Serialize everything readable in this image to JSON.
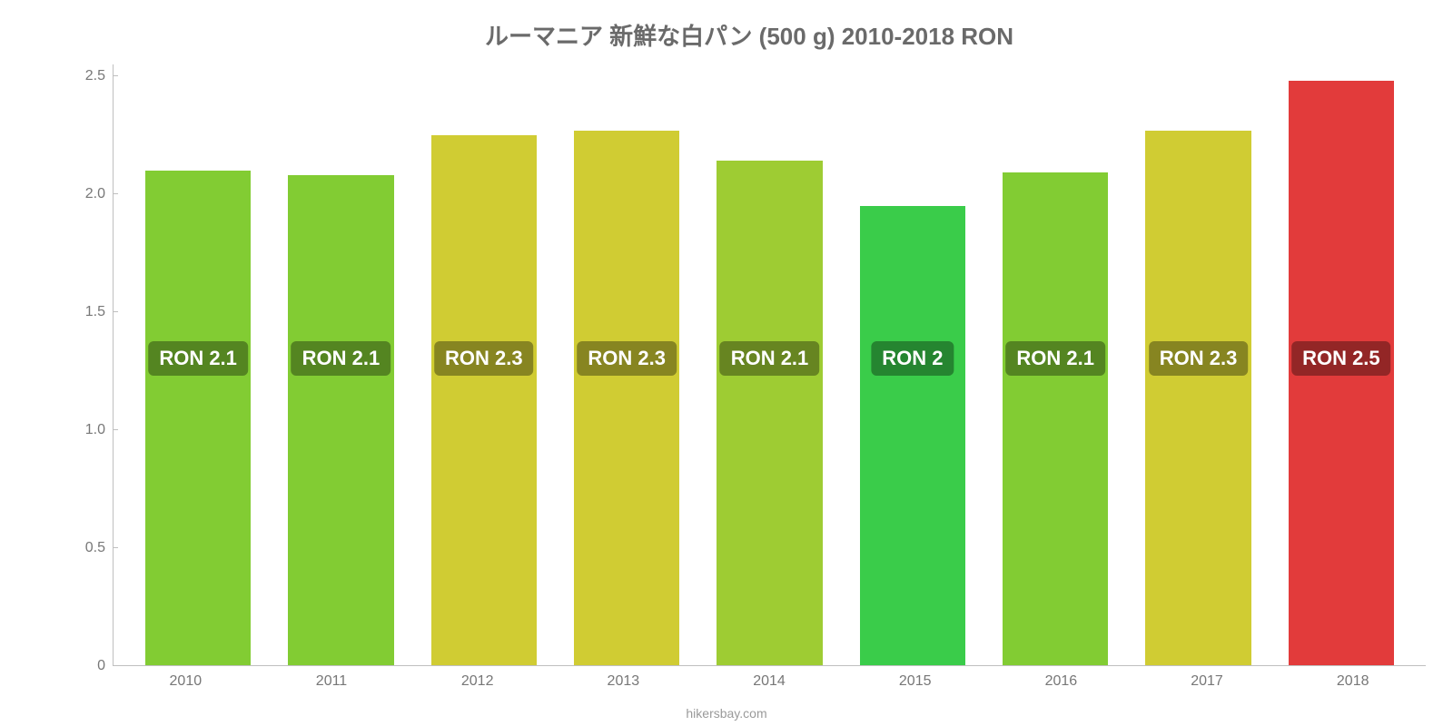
{
  "chart": {
    "type": "bar",
    "title": "ルーマニア 新鮮な白パン (500 g) 2010-2018 RON",
    "title_fontsize": 26,
    "title_color": "#6a6a6a",
    "background_color": "#ffffff",
    "axis_color": "#bfbfbf",
    "label_color": "#777777",
    "label_fontsize": 16,
    "ylim": [
      0,
      2.55
    ],
    "ytick_step": 0.5,
    "yticks": [
      {
        "value": 0,
        "label": "0"
      },
      {
        "value": 0.5,
        "label": "0.5"
      },
      {
        "value": 1.0,
        "label": "1.0"
      },
      {
        "value": 1.5,
        "label": "1.5"
      },
      {
        "value": 2.0,
        "label": "2.0"
      },
      {
        "value": 2.5,
        "label": "2.5"
      }
    ],
    "bar_width_ratio": 0.74,
    "badge_bg": "rgba(0,0,0,0.35)",
    "badge_text_color": "#ffffff",
    "badge_fontsize": 22,
    "categories": [
      "2010",
      "2011",
      "2012",
      "2013",
      "2014",
      "2015",
      "2016",
      "2017",
      "2018"
    ],
    "bars": [
      {
        "year": "2010",
        "value": 2.1,
        "label": "RON 2.1",
        "color": "#82cc33"
      },
      {
        "year": "2011",
        "value": 2.08,
        "label": "RON 2.1",
        "color": "#82cc33"
      },
      {
        "year": "2012",
        "value": 2.25,
        "label": "RON 2.3",
        "color": "#d0cc33"
      },
      {
        "year": "2013",
        "value": 2.27,
        "label": "RON 2.3",
        "color": "#d0cc33"
      },
      {
        "year": "2014",
        "value": 2.14,
        "label": "RON 2.1",
        "color": "#9ecc33"
      },
      {
        "year": "2015",
        "value": 1.95,
        "label": "RON 2",
        "color": "#3acc4a"
      },
      {
        "year": "2016",
        "value": 2.09,
        "label": "RON 2.1",
        "color": "#82cc33"
      },
      {
        "year": "2017",
        "value": 2.27,
        "label": "RON 2.3",
        "color": "#d0cc33"
      },
      {
        "year": "2018",
        "value": 2.48,
        "label": "RON 2.5",
        "color": "#e23b3b"
      }
    ],
    "source": "hikersbay.com"
  }
}
